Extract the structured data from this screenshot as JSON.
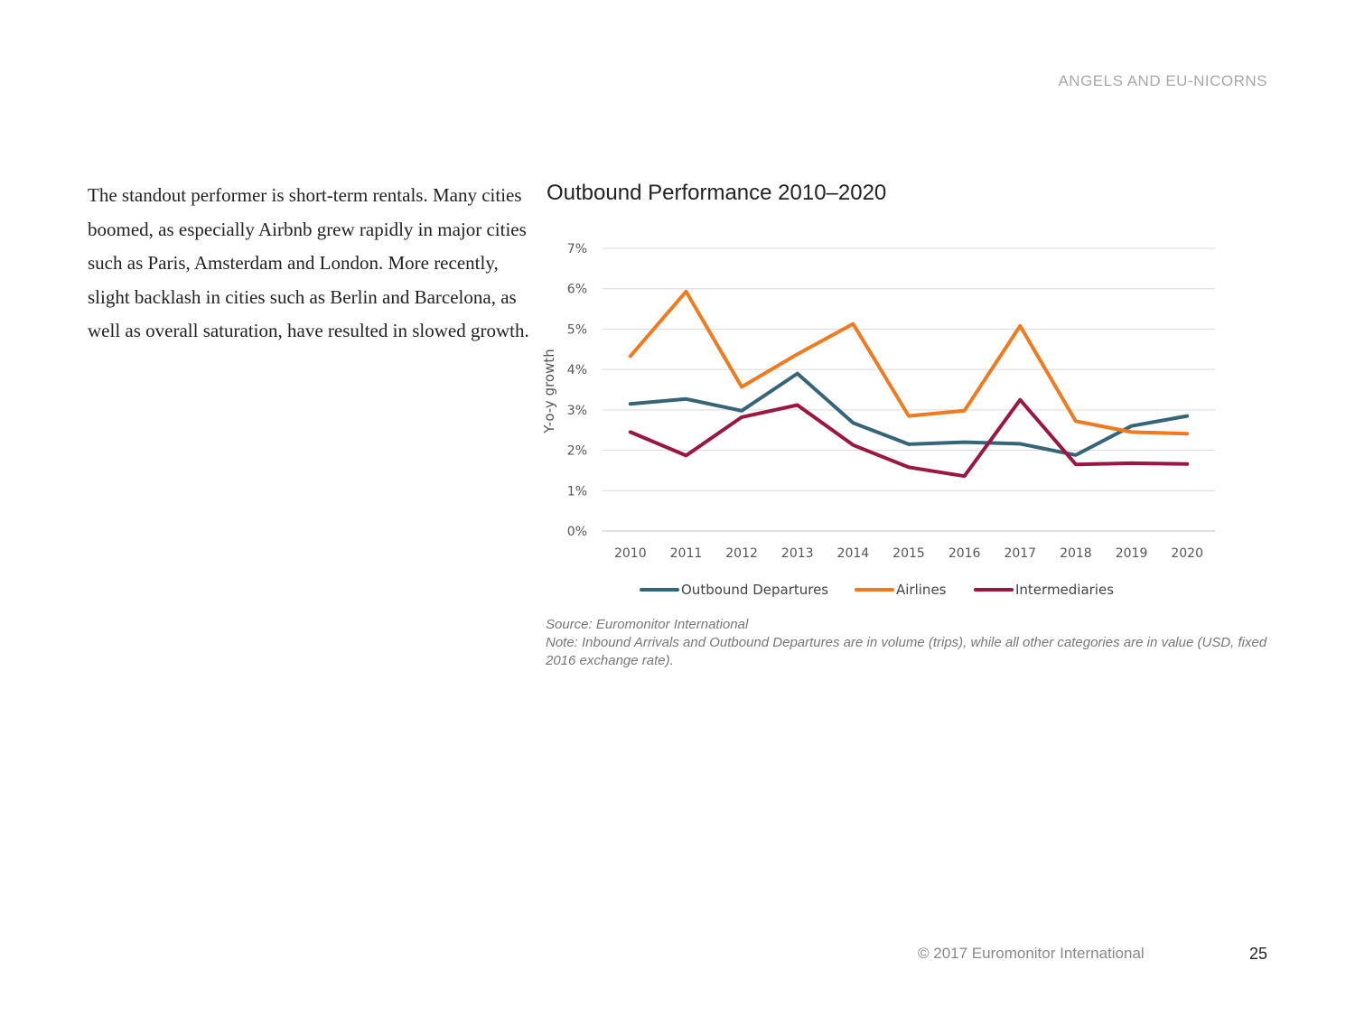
{
  "header": {
    "running_title": "ANGELS AND EU-NICORNS"
  },
  "body_text": "The standout performer is short-term rentals. Many cities boomed, as especially Airbnb grew rapidly in major cities such as Paris, Amsterdam and London. More recently, slight backlash in cities such as Berlin and Barcelona, as well as overall saturation, have resulted in slowed growth.",
  "chart_data": {
    "type": "line",
    "title": "Outbound Performance 2010–2020",
    "xlabel": "",
    "ylabel": "Y-o-y growth",
    "x": [
      "2010",
      "2011",
      "2012",
      "2013",
      "2014",
      "2015",
      "2016",
      "2017",
      "2018",
      "2019",
      "2020"
    ],
    "y_ticks": [
      "0%",
      "1%",
      "2%",
      "3%",
      "4%",
      "5%",
      "6%",
      "7%"
    ],
    "ylim": [
      0,
      7
    ],
    "grid": true,
    "legend_position": "bottom",
    "series": [
      {
        "name": "Outbound Departures",
        "color": "#366577",
        "values": [
          3.15,
          3.27,
          2.98,
          3.9,
          2.68,
          2.15,
          2.2,
          2.16,
          1.88,
          2.6,
          2.85
        ]
      },
      {
        "name": "Airlines",
        "color": "#f07a1f",
        "values": [
          4.33,
          5.93,
          3.57,
          4.38,
          5.13,
          2.85,
          2.98,
          5.08,
          2.72,
          2.45,
          2.41
        ]
      },
      {
        "name": "Intermediaries",
        "color": "#9b1742",
        "values": [
          2.45,
          1.87,
          2.82,
          3.12,
          2.13,
          1.58,
          1.36,
          3.25,
          1.65,
          1.68,
          1.66
        ]
      }
    ]
  },
  "source": "Source: Euromonitor International",
  "note": "Note: Inbound Arrivals and Outbound Departures are in volume (trips), while all other categories are in value (USD, fixed 2016 exchange rate).",
  "footer": {
    "copyright": "© 2017 Euromonitor International",
    "page_number": "25"
  }
}
